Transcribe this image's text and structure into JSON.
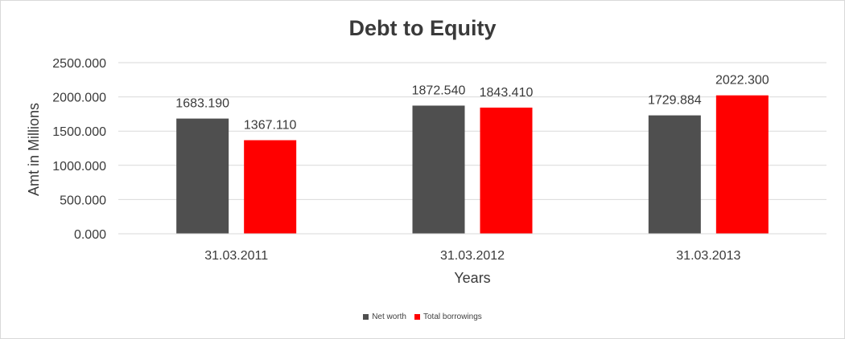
{
  "chart_data": {
    "type": "bar",
    "title": "Debt to Equity",
    "xlabel": "Years",
    "ylabel": "Amt in Millions",
    "categories": [
      "31.03.2011",
      "31.03.2012",
      "31.03.2013"
    ],
    "series": [
      {
        "name": "Net worth",
        "color": "#4f4f4f",
        "values": [
          1683.19,
          1872.54,
          1729.884
        ],
        "labels": [
          "1683.190",
          "1872.540",
          "1729.884"
        ]
      },
      {
        "name": "Total borrowings",
        "color": "#ff0000",
        "values": [
          1367.11,
          1843.41,
          2022.3
        ],
        "labels": [
          "1367.110",
          "1843.410",
          "2022.300"
        ]
      }
    ],
    "ylim": [
      0,
      2500
    ],
    "yticks": [
      "0.000",
      "500.000",
      "1000.000",
      "1500.000",
      "2000.000",
      "2500.000"
    ],
    "grid": true,
    "legend_position": "bottom"
  }
}
